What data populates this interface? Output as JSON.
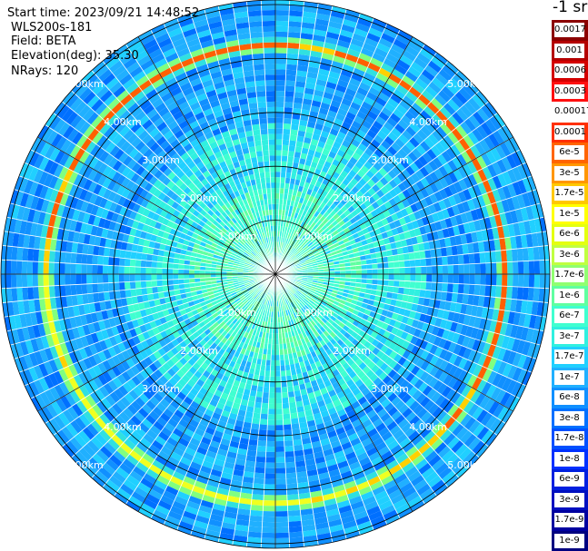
{
  "header": {
    "start_time": "Start time: 2023/09/21 14:48:52",
    "instrument": "WLS200s-181",
    "field": "Field: BETA",
    "elevation": "Elevation(deg): 35.30",
    "nrays": "NRays: 120"
  },
  "unit_label": "-1 sr",
  "chart_data": {
    "type": "heatmap",
    "projection": "polar-ppi",
    "field": "BETA",
    "rays": 120,
    "max_range_km": 5.0,
    "range_rings_km": [
      1.0,
      2.0,
      3.0,
      4.0,
      5.0
    ],
    "ring_labels": [
      "1.00km",
      "2.00km",
      "3.00km",
      "4.00km",
      "5.00km"
    ],
    "spoke_angles_deg": [
      0,
      30,
      60,
      90,
      120,
      150,
      180,
      210,
      240,
      270,
      300,
      330
    ],
    "bright_ring_km": 4.25,
    "colorbar": {
      "ticks": [
        "0.0017",
        "0.001",
        "0.0006",
        "0.0003",
        "0.00017",
        "0.0001",
        "6e-5",
        "3e-5",
        "1.7e-5",
        "1e-5",
        "6e-6",
        "3e-6",
        "1.7e-6",
        "1e-6",
        "6e-7",
        "3e-7",
        "1.7e-7",
        "1e-7",
        "6e-8",
        "3e-8",
        "1.7e-8",
        "1e-8",
        "6e-9",
        "3e-9",
        "1.7e-9",
        "1e-9"
      ],
      "colors": [
        "#8b0000",
        "#b40000",
        "#d40000",
        "#ff1010",
        "#ffffff",
        "#ff3000",
        "#ff6400",
        "#ff9600",
        "#ffc800",
        "#ffff00",
        "#e4ff10",
        "#c0ff40",
        "#90ff70",
        "#60ffa0",
        "#40ffd0",
        "#30f0e0",
        "#20d0ff",
        "#20b0ff",
        "#1090ff",
        "#0070ff",
        "#0050ff",
        "#0030ff",
        "#0020e0",
        "#0010c0",
        "#0000a0",
        "#000080"
      ]
    }
  }
}
